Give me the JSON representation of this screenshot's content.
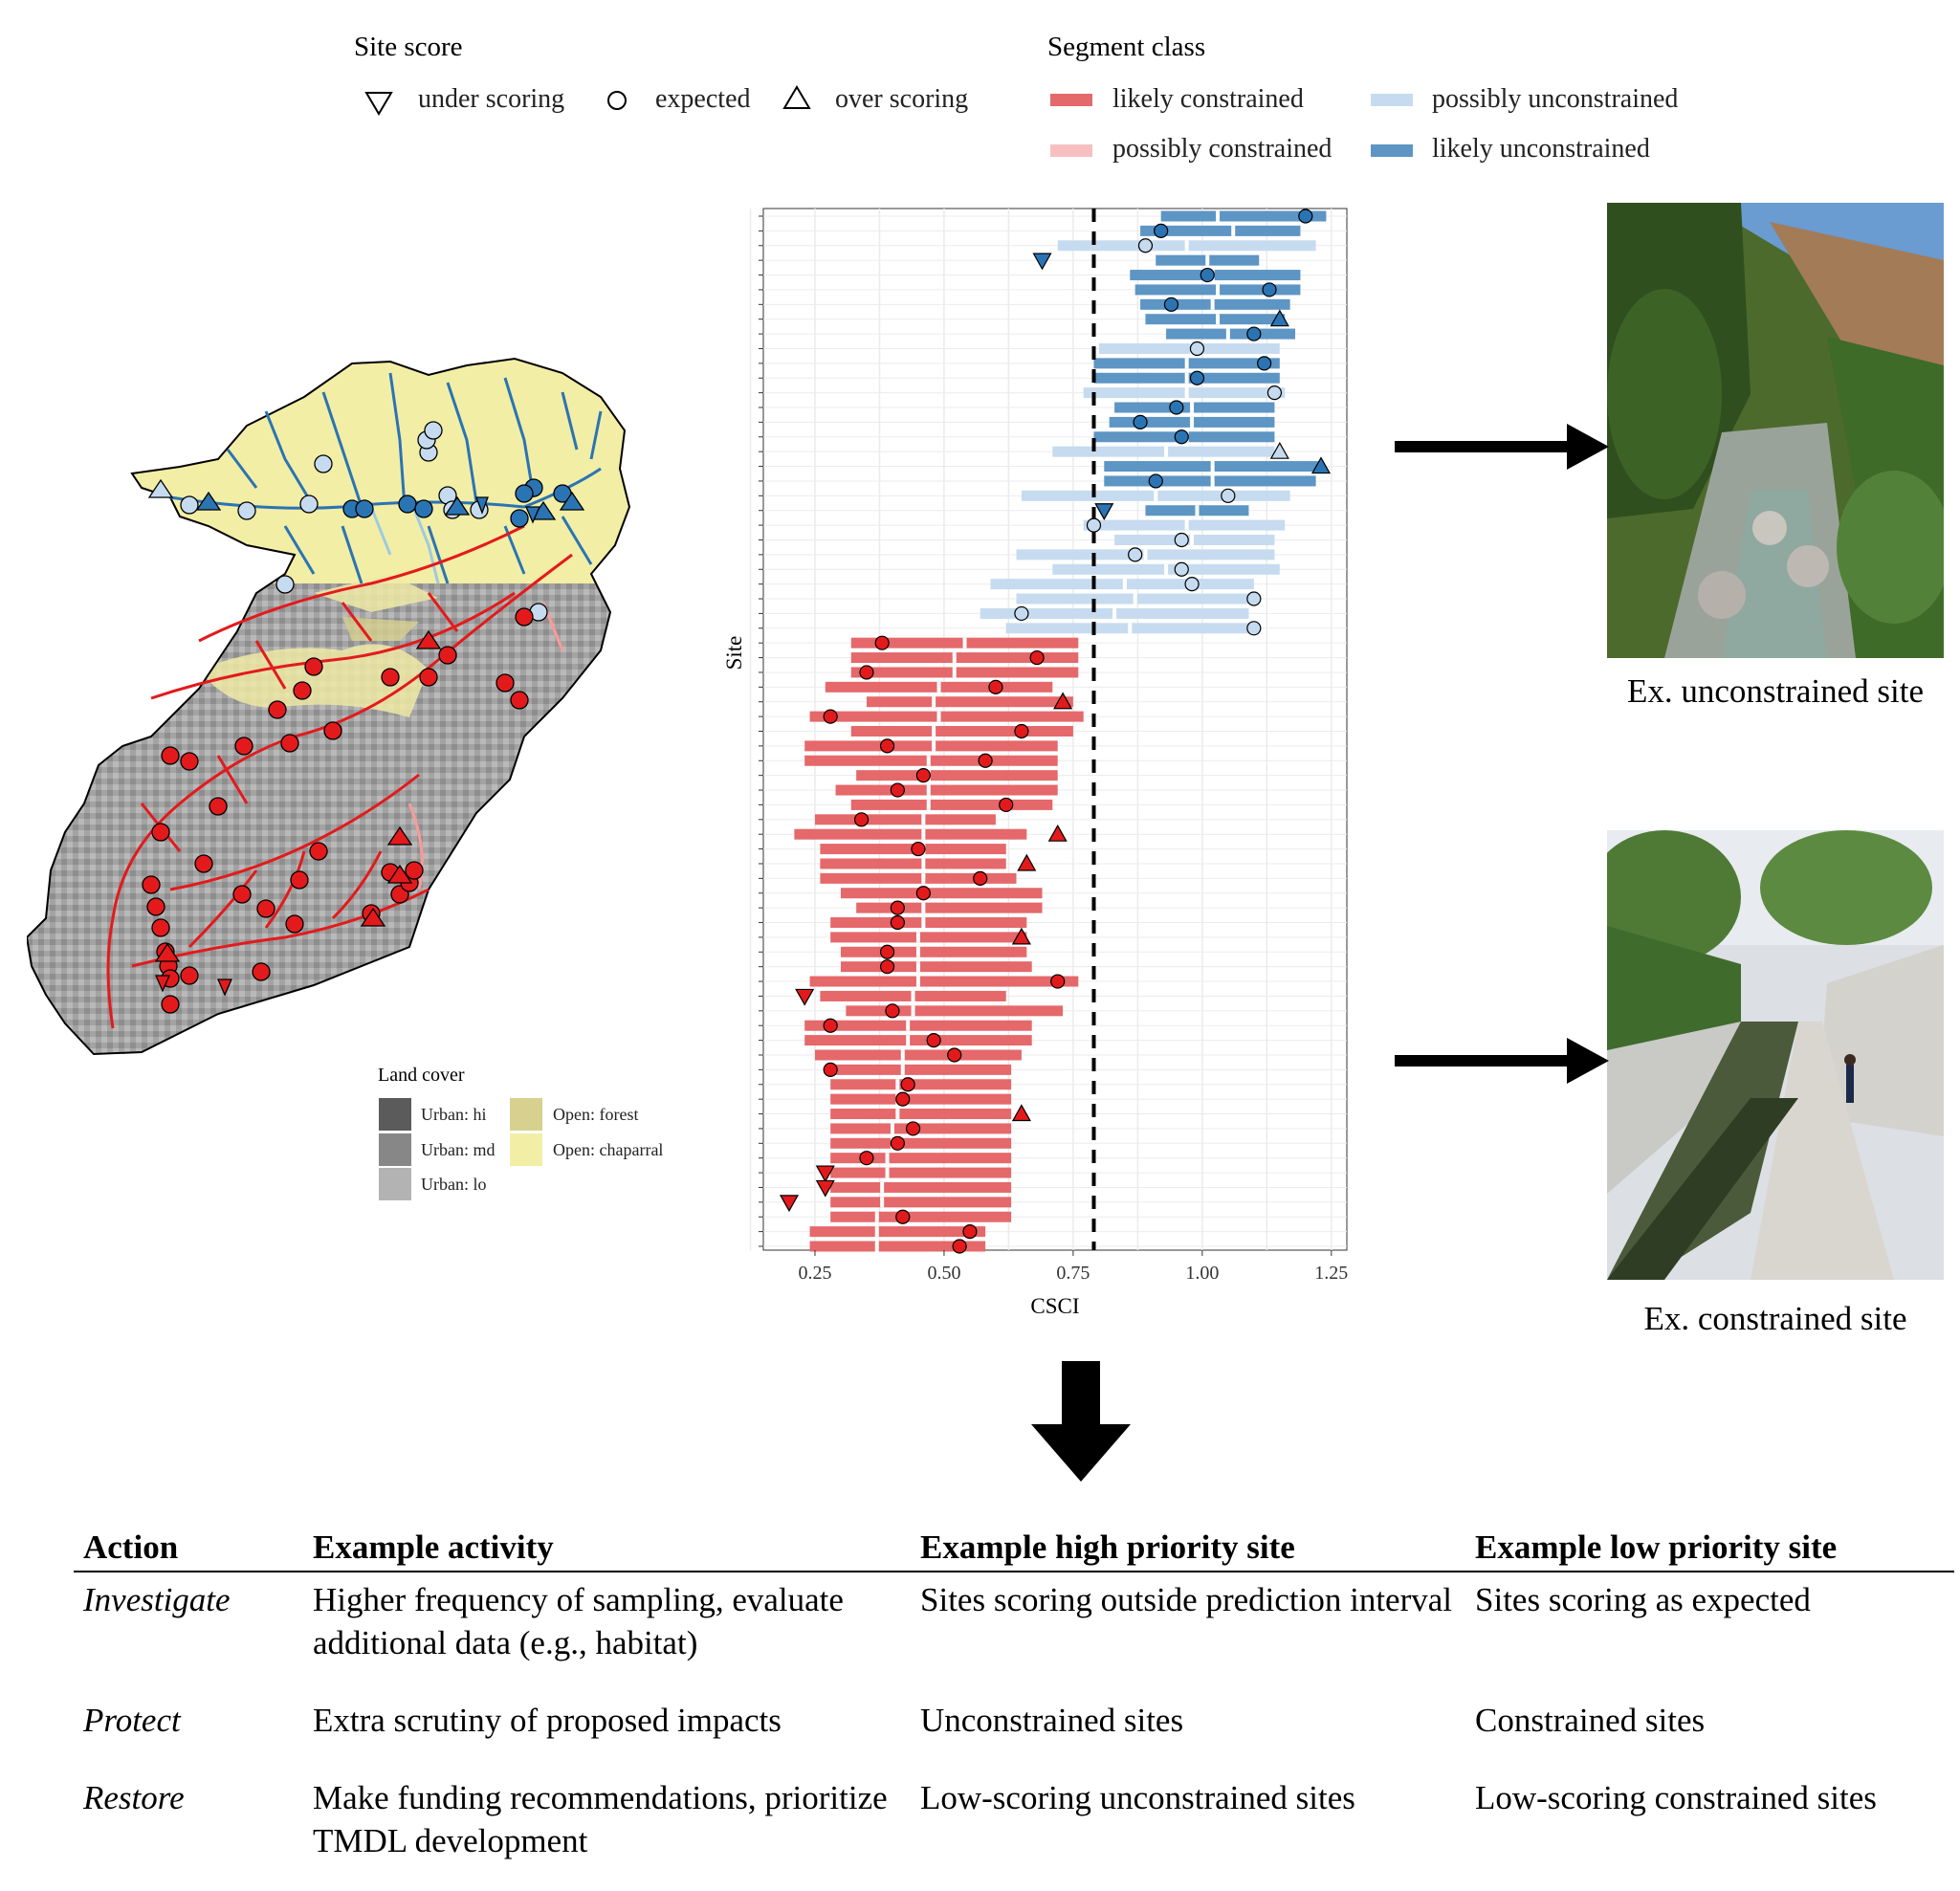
{
  "legend": {
    "site_score": {
      "title": "Site score",
      "items": [
        {
          "label": "under scoring",
          "symbol": "down-triangle"
        },
        {
          "label": "expected",
          "symbol": "circle"
        },
        {
          "label": "over scoring",
          "symbol": "up-triangle"
        }
      ]
    },
    "segment_class": {
      "title": "Segment class",
      "items": [
        {
          "label": "likely constrained",
          "color": "#e5686b"
        },
        {
          "label": "possibly constrained",
          "color": "#f7c0c0"
        },
        {
          "label": "possibly unconstrained",
          "color": "#c6dbef"
        },
        {
          "label": "likely unconstrained",
          "color": "#5d95c4"
        }
      ]
    }
  },
  "map": {
    "land_cover": {
      "title": "Land cover",
      "items": [
        {
          "label": "Urban: hi",
          "color": "#5b5b5b"
        },
        {
          "label": "Urban: md",
          "color": "#878787"
        },
        {
          "label": "Urban: lo",
          "color": "#b3b3b3"
        },
        {
          "label": "Open: forest",
          "color": "#d7d08e"
        },
        {
          "label": "Open: chaparral",
          "color": "#f3eea5"
        }
      ]
    },
    "colors": {
      "chaparral": "#f3eea5",
      "urban": "#a5a5a5",
      "stream_blue": "#2a74b4",
      "stream_red": "#e31a1c"
    }
  },
  "photos": {
    "unconstrained_caption": "Ex. unconstrained site",
    "constrained_caption": "Ex. constrained site"
  },
  "chart_data": {
    "type": "scatter",
    "xlabel": "CSCI",
    "ylabel": "Site",
    "xlim": [
      0.15,
      1.28
    ],
    "x_ticks": [
      "0.25",
      "0.50",
      "0.75",
      "1.00",
      "1.25"
    ],
    "reference_line": 0.79,
    "grid": true,
    "sites_top_to_bottom": [
      {
        "lo": 0.92,
        "hi": 1.24,
        "median": 1.03,
        "csci": 1.2,
        "class": "likely unconstrained",
        "score": "expected"
      },
      {
        "lo": 0.88,
        "hi": 1.19,
        "median": 1.06,
        "csci": 0.92,
        "class": "likely unconstrained",
        "score": "expected"
      },
      {
        "lo": 0.72,
        "hi": 1.22,
        "median": 0.97,
        "csci": 0.89,
        "class": "possibly unconstrained",
        "score": "expected"
      },
      {
        "lo": 0.91,
        "hi": 1.11,
        "median": 1.01,
        "csci": 0.69,
        "class": "likely unconstrained",
        "score": "under"
      },
      {
        "lo": 0.86,
        "hi": 1.19,
        "median": 1.02,
        "csci": 1.01,
        "class": "likely unconstrained",
        "score": "expected"
      },
      {
        "lo": 0.87,
        "hi": 1.19,
        "median": 1.03,
        "csci": 1.13,
        "class": "likely unconstrained",
        "score": "expected"
      },
      {
        "lo": 0.88,
        "hi": 1.17,
        "median": 1.02,
        "csci": 0.94,
        "class": "likely unconstrained",
        "score": "expected"
      },
      {
        "lo": 0.89,
        "hi": 1.16,
        "median": 1.03,
        "csci": 1.15,
        "class": "likely unconstrained",
        "score": "over"
      },
      {
        "lo": 0.93,
        "hi": 1.18,
        "median": 1.05,
        "csci": 1.1,
        "class": "likely unconstrained",
        "score": "expected"
      },
      {
        "lo": 0.8,
        "hi": 1.15,
        "median": 0.98,
        "csci": 0.99,
        "class": "possibly unconstrained",
        "score": "expected"
      },
      {
        "lo": 0.79,
        "hi": 1.15,
        "median": 0.97,
        "csci": 1.12,
        "class": "likely unconstrained",
        "score": "expected"
      },
      {
        "lo": 0.79,
        "hi": 1.15,
        "median": 0.97,
        "csci": 0.99,
        "class": "likely unconstrained",
        "score": "expected"
      },
      {
        "lo": 0.77,
        "hi": 1.16,
        "median": 0.97,
        "csci": 1.14,
        "class": "possibly unconstrained",
        "score": "expected"
      },
      {
        "lo": 0.83,
        "hi": 1.14,
        "median": 0.98,
        "csci": 0.95,
        "class": "likely unconstrained",
        "score": "expected"
      },
      {
        "lo": 0.82,
        "hi": 1.14,
        "median": 0.98,
        "csci": 0.88,
        "class": "likely unconstrained",
        "score": "expected"
      },
      {
        "lo": 0.79,
        "hi": 1.14,
        "median": 0.97,
        "csci": 0.96,
        "class": "likely unconstrained",
        "score": "expected"
      },
      {
        "lo": 0.71,
        "hi": 1.14,
        "median": 0.93,
        "csci": 1.15,
        "class": "possibly unconstrained",
        "score": "over"
      },
      {
        "lo": 0.81,
        "hi": 1.23,
        "median": 1.02,
        "csci": 1.23,
        "class": "likely unconstrained",
        "score": "over"
      },
      {
        "lo": 0.81,
        "hi": 1.22,
        "median": 1.02,
        "csci": 0.91,
        "class": "likely unconstrained",
        "score": "expected"
      },
      {
        "lo": 0.65,
        "hi": 1.17,
        "median": 0.91,
        "csci": 1.05,
        "class": "possibly unconstrained",
        "score": "expected"
      },
      {
        "lo": 0.89,
        "hi": 1.09,
        "median": 0.99,
        "csci": 0.81,
        "class": "likely unconstrained",
        "score": "under"
      },
      {
        "lo": 0.77,
        "hi": 1.16,
        "median": 0.97,
        "csci": 0.79,
        "class": "possibly unconstrained",
        "score": "expected"
      },
      {
        "lo": 0.83,
        "hi": 1.14,
        "median": 0.98,
        "csci": 0.96,
        "class": "possibly unconstrained",
        "score": "expected"
      },
      {
        "lo": 0.64,
        "hi": 1.14,
        "median": 0.89,
        "csci": 0.87,
        "class": "possibly unconstrained",
        "score": "expected"
      },
      {
        "lo": 0.71,
        "hi": 1.15,
        "median": 0.93,
        "csci": 0.96,
        "class": "possibly unconstrained",
        "score": "expected"
      },
      {
        "lo": 0.59,
        "hi": 1.1,
        "median": 0.85,
        "csci": 0.98,
        "class": "possibly unconstrained",
        "score": "expected"
      },
      {
        "lo": 0.64,
        "hi": 1.1,
        "median": 0.87,
        "csci": 1.1,
        "class": "possibly unconstrained",
        "score": "expected"
      },
      {
        "lo": 0.57,
        "hi": 1.09,
        "median": 0.83,
        "csci": 0.65,
        "class": "possibly unconstrained",
        "score": "expected"
      },
      {
        "lo": 0.62,
        "hi": 1.09,
        "median": 0.86,
        "csci": 1.1,
        "class": "possibly unconstrained",
        "score": "expected"
      },
      {
        "lo": 0.32,
        "hi": 0.76,
        "median": 0.54,
        "csci": 0.38,
        "class": "likely constrained",
        "score": "expected"
      },
      {
        "lo": 0.32,
        "hi": 0.76,
        "median": 0.52,
        "csci": 0.68,
        "class": "likely constrained",
        "score": "expected"
      },
      {
        "lo": 0.32,
        "hi": 0.76,
        "median": 0.52,
        "csci": 0.35,
        "class": "likely constrained",
        "score": "expected"
      },
      {
        "lo": 0.27,
        "hi": 0.71,
        "median": 0.49,
        "csci": 0.6,
        "class": "likely constrained",
        "score": "expected"
      },
      {
        "lo": 0.35,
        "hi": 0.75,
        "median": 0.48,
        "csci": 0.73,
        "class": "likely constrained",
        "score": "over"
      },
      {
        "lo": 0.24,
        "hi": 0.77,
        "median": 0.49,
        "csci": 0.28,
        "class": "likely constrained",
        "score": "expected"
      },
      {
        "lo": 0.32,
        "hi": 0.75,
        "median": 0.48,
        "csci": 0.65,
        "class": "likely constrained",
        "score": "expected"
      },
      {
        "lo": 0.23,
        "hi": 0.72,
        "median": 0.48,
        "csci": 0.39,
        "class": "likely constrained",
        "score": "expected"
      },
      {
        "lo": 0.23,
        "hi": 0.72,
        "median": 0.47,
        "csci": 0.58,
        "class": "likely constrained",
        "score": "expected"
      },
      {
        "lo": 0.33,
        "hi": 0.72,
        "median": 0.47,
        "csci": 0.46,
        "class": "likely constrained",
        "score": "expected"
      },
      {
        "lo": 0.29,
        "hi": 0.72,
        "median": 0.47,
        "csci": 0.41,
        "class": "likely constrained",
        "score": "expected"
      },
      {
        "lo": 0.32,
        "hi": 0.71,
        "median": 0.47,
        "csci": 0.62,
        "class": "likely constrained",
        "score": "expected"
      },
      {
        "lo": 0.25,
        "hi": 0.6,
        "median": 0.46,
        "csci": 0.34,
        "class": "likely constrained",
        "score": "expected"
      },
      {
        "lo": 0.21,
        "hi": 0.66,
        "median": 0.46,
        "csci": 0.72,
        "class": "likely constrained",
        "score": "over"
      },
      {
        "lo": 0.26,
        "hi": 0.62,
        "median": 0.46,
        "csci": 0.45,
        "class": "likely constrained",
        "score": "expected"
      },
      {
        "lo": 0.26,
        "hi": 0.62,
        "median": 0.46,
        "csci": 0.66,
        "class": "likely constrained",
        "score": "over"
      },
      {
        "lo": 0.26,
        "hi": 0.64,
        "median": 0.46,
        "csci": 0.57,
        "class": "likely constrained",
        "score": "expected"
      },
      {
        "lo": 0.3,
        "hi": 0.69,
        "median": 0.46,
        "csci": 0.46,
        "class": "likely constrained",
        "score": "expected"
      },
      {
        "lo": 0.33,
        "hi": 0.69,
        "median": 0.46,
        "csci": 0.41,
        "class": "likely constrained",
        "score": "expected"
      },
      {
        "lo": 0.28,
        "hi": 0.66,
        "median": 0.46,
        "csci": 0.41,
        "class": "likely constrained",
        "score": "expected"
      },
      {
        "lo": 0.28,
        "hi": 0.66,
        "median": 0.45,
        "csci": 0.65,
        "class": "likely constrained",
        "score": "over"
      },
      {
        "lo": 0.3,
        "hi": 0.66,
        "median": 0.45,
        "csci": 0.39,
        "class": "likely constrained",
        "score": "expected"
      },
      {
        "lo": 0.3,
        "hi": 0.67,
        "median": 0.45,
        "csci": 0.39,
        "class": "likely constrained",
        "score": "expected"
      },
      {
        "lo": 0.24,
        "hi": 0.76,
        "median": 0.45,
        "csci": 0.72,
        "class": "likely constrained",
        "score": "expected"
      },
      {
        "lo": 0.26,
        "hi": 0.62,
        "median": 0.44,
        "csci": 0.23,
        "class": "likely constrained",
        "score": "under"
      },
      {
        "lo": 0.31,
        "hi": 0.73,
        "median": 0.44,
        "csci": 0.4,
        "class": "likely constrained",
        "score": "expected"
      },
      {
        "lo": 0.23,
        "hi": 0.67,
        "median": 0.43,
        "csci": 0.28,
        "class": "likely constrained",
        "score": "expected"
      },
      {
        "lo": 0.23,
        "hi": 0.67,
        "median": 0.43,
        "csci": 0.48,
        "class": "likely constrained",
        "score": "expected"
      },
      {
        "lo": 0.25,
        "hi": 0.65,
        "median": 0.42,
        "csci": 0.52,
        "class": "likely constrained",
        "score": "expected"
      },
      {
        "lo": 0.28,
        "hi": 0.63,
        "median": 0.42,
        "csci": 0.28,
        "class": "likely constrained",
        "score": "expected"
      },
      {
        "lo": 0.28,
        "hi": 0.63,
        "median": 0.41,
        "csci": 0.43,
        "class": "likely constrained",
        "score": "expected"
      },
      {
        "lo": 0.28,
        "hi": 0.63,
        "median": 0.41,
        "csci": 0.42,
        "class": "likely constrained",
        "score": "expected"
      },
      {
        "lo": 0.28,
        "hi": 0.63,
        "median": 0.41,
        "csci": 0.65,
        "class": "likely constrained",
        "score": "over"
      },
      {
        "lo": 0.28,
        "hi": 0.63,
        "median": 0.4,
        "csci": 0.44,
        "class": "likely constrained",
        "score": "expected"
      },
      {
        "lo": 0.28,
        "hi": 0.63,
        "median": 0.4,
        "csci": 0.41,
        "class": "likely constrained",
        "score": "expected"
      },
      {
        "lo": 0.28,
        "hi": 0.63,
        "median": 0.39,
        "csci": 0.35,
        "class": "likely constrained",
        "score": "expected"
      },
      {
        "lo": 0.28,
        "hi": 0.63,
        "median": 0.39,
        "csci": 0.27,
        "class": "likely constrained",
        "score": "under"
      },
      {
        "lo": 0.28,
        "hi": 0.63,
        "median": 0.38,
        "csci": 0.27,
        "class": "likely constrained",
        "score": "under"
      },
      {
        "lo": 0.28,
        "hi": 0.63,
        "median": 0.38,
        "csci": 0.2,
        "class": "likely constrained",
        "score": "under"
      },
      {
        "lo": 0.28,
        "hi": 0.63,
        "median": 0.37,
        "csci": 0.42,
        "class": "likely constrained",
        "score": "expected"
      },
      {
        "lo": 0.24,
        "hi": 0.58,
        "median": 0.37,
        "csci": 0.55,
        "class": "likely constrained",
        "score": "expected"
      },
      {
        "lo": 0.24,
        "hi": 0.58,
        "median": 0.37,
        "csci": 0.53,
        "class": "likely constrained",
        "score": "expected"
      }
    ]
  },
  "table": {
    "headers": [
      "Action",
      "Example activity",
      "Example high priority site",
      "Example low priority site"
    ],
    "rows": [
      {
        "action": "Investigate",
        "activity": "Higher frequency of sampling, evaluate additional data (e.g., habitat)",
        "high": "Sites scoring outside prediction interval",
        "low": "Sites scoring as expected"
      },
      {
        "action": "Protect",
        "activity": "Extra scrutiny of proposed impacts",
        "high": "Unconstrained sites",
        "low": "Constrained sites"
      },
      {
        "action": "Restore",
        "activity": "Make funding recommendations, prioritize TMDL development",
        "high": "Low-scoring unconstrained sites",
        "low": "Low-scoring constrained sites"
      }
    ]
  }
}
